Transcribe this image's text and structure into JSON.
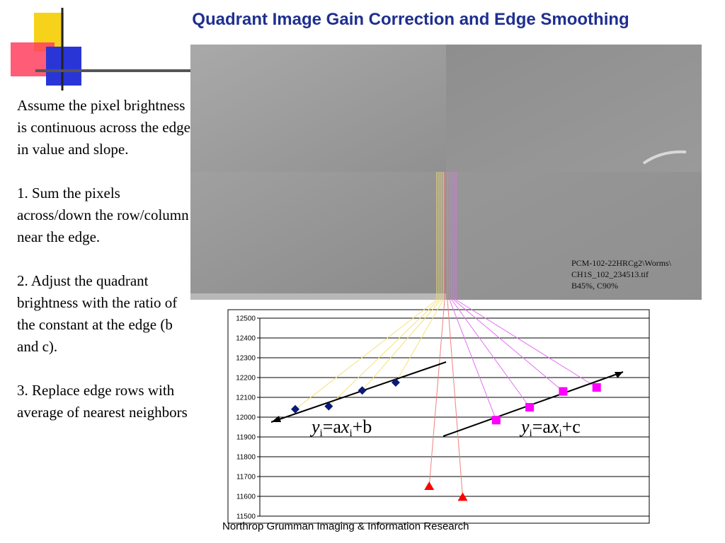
{
  "slide": {
    "title": "Quadrant Image Gain Correction and Edge Smoothing",
    "body": [
      "Assume the pixel brightness is continuous across the edge in value and slope.",
      "1. Sum the pixels across/down the row/column near the edge.",
      "2. Adjust the quadrant brightness with the ratio of the constant at the edge (b and c).",
      "3. Replace edge rows with average of nearest neighbors"
    ],
    "image_caption": [
      "PCM-102-22HRCg2\\Worms\\",
      "CH1S_102_234513.tif",
      "B45%, C90%"
    ],
    "footer": "Northrop Grumman Imaging & Information Research",
    "equation_left": {
      "y": "y",
      "sub": "i",
      "mid": "=a",
      "x": "x",
      "sub2": "i",
      "rest": "+b"
    },
    "equation_right": {
      "y": "y",
      "sub": "i",
      "mid": "=a",
      "x": "x",
      "sub2": "i",
      "rest": "+c"
    }
  },
  "colors": {
    "title": "#1f2f8f",
    "diamond": "#0b1a78",
    "square": "#ff00ff",
    "triangle": "#ff0000",
    "yellow_line": "#f5e27a",
    "magenta_line": "#e070f0",
    "red_line": "#f08080"
  },
  "chart_data": {
    "type": "scatter",
    "ylim": [
      11500,
      12500
    ],
    "yticks": [
      11500,
      11600,
      11700,
      11800,
      11900,
      12000,
      12100,
      12200,
      12300,
      12400,
      12500
    ],
    "grid": true,
    "series": [
      {
        "marker": "diamond",
        "points": [
          {
            "x": 1,
            "y": 12040
          },
          {
            "x": 2,
            "y": 12055
          },
          {
            "x": 3,
            "y": 12135
          },
          {
            "x": 4,
            "y": 12175
          }
        ]
      },
      {
        "marker": "triangle",
        "points": [
          {
            "x": 5,
            "y": 11650
          },
          {
            "x": 6,
            "y": 11595
          }
        ]
      },
      {
        "marker": "square",
        "points": [
          {
            "x": 7,
            "y": 11985
          },
          {
            "x": 8,
            "y": 12050
          },
          {
            "x": 9,
            "y": 12130
          },
          {
            "x": 10,
            "y": 12150
          }
        ]
      }
    ]
  }
}
